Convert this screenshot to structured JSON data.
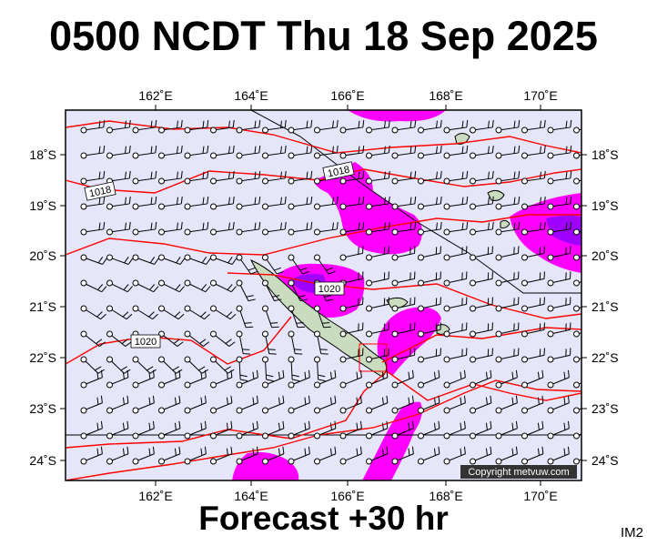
{
  "title": "0500 NCDT Thu 18 Sep 2025",
  "subtitle": "Forecast +30 hr",
  "product_code": "IM2",
  "copyright": "Copyright metvuw.com",
  "longitude_labels": [
    "162˚E",
    "164˚E",
    "166˚E",
    "168˚E",
    "170˚E"
  ],
  "latitude_labels": [
    "18˚S",
    "19˚S",
    "20˚S",
    "21˚S",
    "22˚S",
    "23˚S",
    "24˚S"
  ],
  "isobar_labels": [
    "1018",
    "1018",
    "1020",
    "1020"
  ],
  "colors": {
    "background": "#e6e6fa",
    "isobar": "#ff0000",
    "rain_light": "#ff00ff",
    "rain_heavy": "#a000ff",
    "land": "#c9dcc0"
  }
}
